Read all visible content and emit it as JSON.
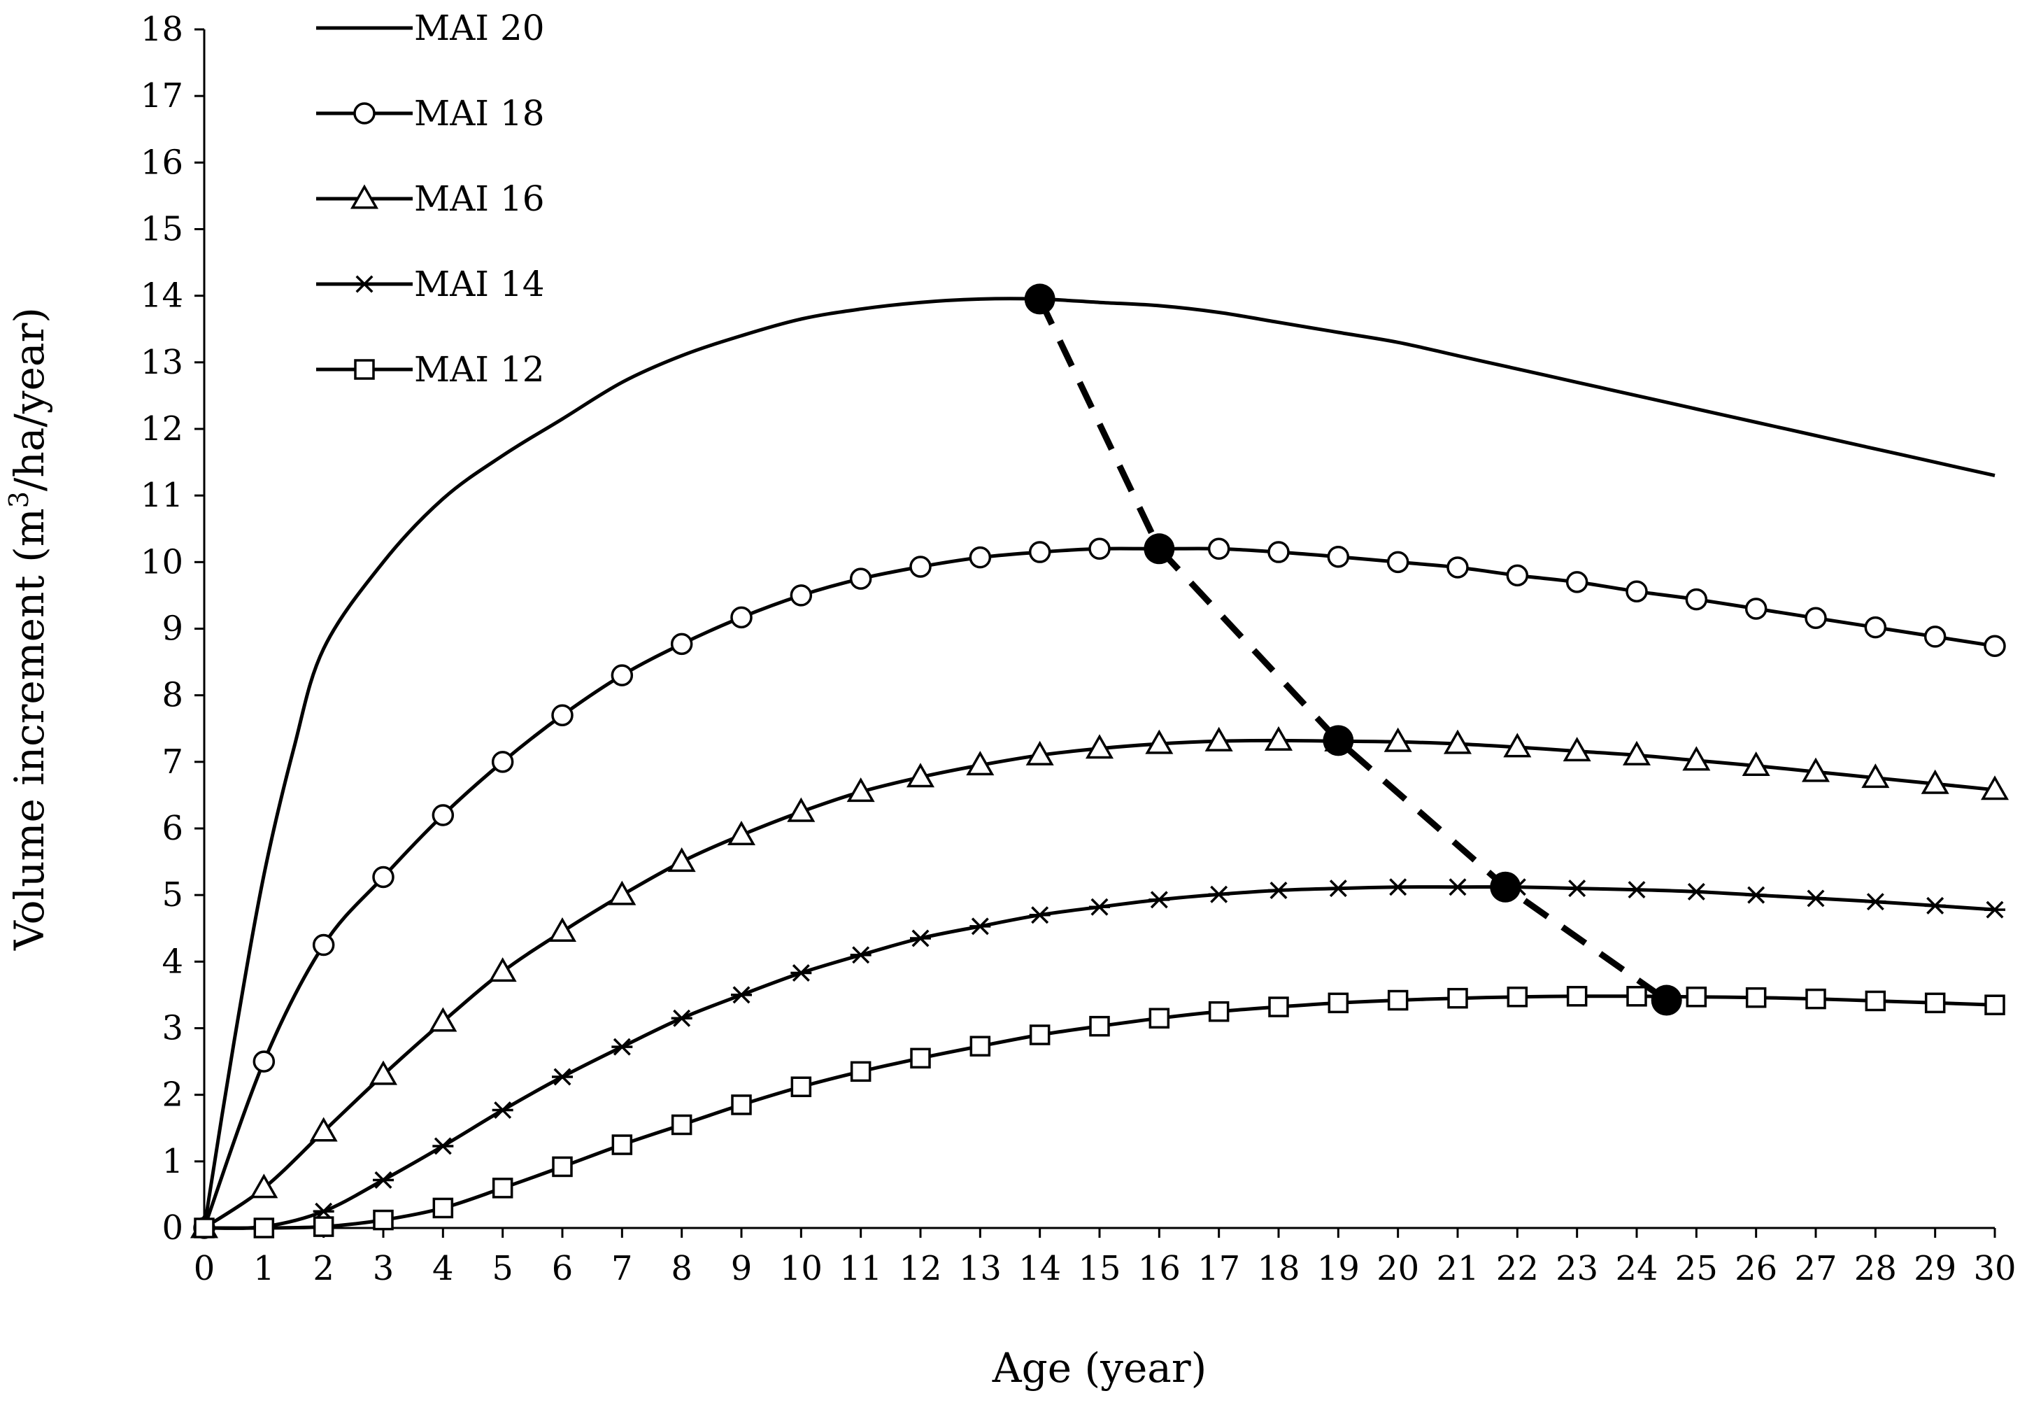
{
  "chart_data": {
    "type": "line",
    "title": "",
    "xlabel": "Age (year)",
    "ylabel_parts": [
      "Volume increment (m",
      "3",
      "/ha/year)"
    ],
    "xlim": [
      0,
      30
    ],
    "ylim": [
      0,
      18
    ],
    "x_ticks": [
      0,
      1,
      2,
      3,
      4,
      5,
      6,
      7,
      8,
      9,
      10,
      11,
      12,
      13,
      14,
      15,
      16,
      17,
      18,
      19,
      20,
      21,
      22,
      23,
      24,
      25,
      26,
      27,
      28,
      29,
      30
    ],
    "y_ticks": [
      0,
      1,
      2,
      3,
      4,
      5,
      6,
      7,
      8,
      9,
      10,
      11,
      12,
      13,
      14,
      15,
      16,
      17,
      18
    ],
    "grid": false,
    "legend_position": "top-left",
    "line_color": "#000000",
    "series": [
      {
        "name": "MAI 20",
        "marker": "none",
        "x": [
          0,
          0.5,
          1,
          1.5,
          2,
          3,
          4,
          5,
          6,
          7,
          8,
          9,
          10,
          11,
          12,
          13,
          14,
          15,
          16,
          17,
          18,
          19,
          20,
          21,
          22,
          23,
          24,
          25,
          26,
          27,
          28,
          29,
          30
        ],
        "values": [
          0,
          2.8,
          5.3,
          7.2,
          8.7,
          10.0,
          10.95,
          11.6,
          12.15,
          12.7,
          13.1,
          13.4,
          13.65,
          13.8,
          13.9,
          13.95,
          13.95,
          13.9,
          13.85,
          13.75,
          13.6,
          13.45,
          13.3,
          13.1,
          12.9,
          12.7,
          12.5,
          12.3,
          12.1,
          11.9,
          11.7,
          11.5,
          11.3
        ]
      },
      {
        "name": "MAI 18",
        "marker": "circle",
        "x": [
          0,
          1,
          2,
          3,
          4,
          5,
          6,
          7,
          8,
          9,
          10,
          11,
          12,
          13,
          14,
          15,
          16,
          17,
          18,
          19,
          20,
          21,
          22,
          23,
          24,
          25,
          26,
          27,
          28,
          29,
          30
        ],
        "values": [
          0,
          2.5,
          4.25,
          5.27,
          6.2,
          7.0,
          7.7,
          8.3,
          8.77,
          9.17,
          9.5,
          9.75,
          9.93,
          10.07,
          10.15,
          10.2,
          10.2,
          10.2,
          10.15,
          10.08,
          10.0,
          9.92,
          9.8,
          9.7,
          9.56,
          9.44,
          9.3,
          9.16,
          9.02,
          8.88,
          8.74
        ]
      },
      {
        "name": "MAI 16",
        "marker": "triangle",
        "x": [
          0,
          1,
          2,
          3,
          4,
          5,
          6,
          7,
          8,
          9,
          10,
          11,
          12,
          13,
          14,
          15,
          16,
          17,
          18,
          19,
          20,
          21,
          22,
          23,
          24,
          25,
          26,
          27,
          28,
          29,
          30
        ],
        "values": [
          0,
          0.6,
          1.45,
          2.3,
          3.1,
          3.85,
          4.45,
          5.0,
          5.5,
          5.9,
          6.25,
          6.55,
          6.77,
          6.95,
          7.1,
          7.2,
          7.27,
          7.31,
          7.32,
          7.31,
          7.3,
          7.27,
          7.22,
          7.16,
          7.1,
          7.02,
          6.94,
          6.85,
          6.76,
          6.67,
          6.58
        ]
      },
      {
        "name": "MAI 14",
        "marker": "asterisk",
        "x": [
          0,
          1,
          2,
          3,
          4,
          5,
          6,
          7,
          8,
          9,
          10,
          11,
          12,
          13,
          14,
          15,
          16,
          17,
          18,
          19,
          20,
          21,
          22,
          23,
          24,
          25,
          26,
          27,
          28,
          29,
          30
        ],
        "values": [
          0,
          0.02,
          0.25,
          0.72,
          1.23,
          1.77,
          2.27,
          2.72,
          3.15,
          3.5,
          3.83,
          4.1,
          4.35,
          4.53,
          4.7,
          4.82,
          4.93,
          5.01,
          5.07,
          5.1,
          5.12,
          5.12,
          5.12,
          5.1,
          5.08,
          5.05,
          5.0,
          4.95,
          4.9,
          4.84,
          4.78
        ]
      },
      {
        "name": "MAI 12",
        "marker": "square",
        "x": [
          0,
          1,
          2,
          3,
          4,
          5,
          6,
          7,
          8,
          9,
          10,
          11,
          12,
          13,
          14,
          15,
          16,
          17,
          18,
          19,
          20,
          21,
          22,
          23,
          24,
          25,
          26,
          27,
          28,
          29,
          30
        ],
        "values": [
          0,
          0,
          0.02,
          0.12,
          0.3,
          0.6,
          0.92,
          1.25,
          1.55,
          1.85,
          2.12,
          2.35,
          2.55,
          2.73,
          2.9,
          3.03,
          3.15,
          3.25,
          3.32,
          3.38,
          3.42,
          3.45,
          3.47,
          3.48,
          3.48,
          3.47,
          3.46,
          3.44,
          3.41,
          3.38,
          3.35
        ]
      },
      {
        "marker": "filled-circle",
        "dashed": true,
        "x": [
          14,
          16,
          19,
          21.8,
          24.5
        ],
        "values": [
          13.95,
          10.2,
          7.32,
          5.12,
          3.42
        ]
      }
    ]
  }
}
